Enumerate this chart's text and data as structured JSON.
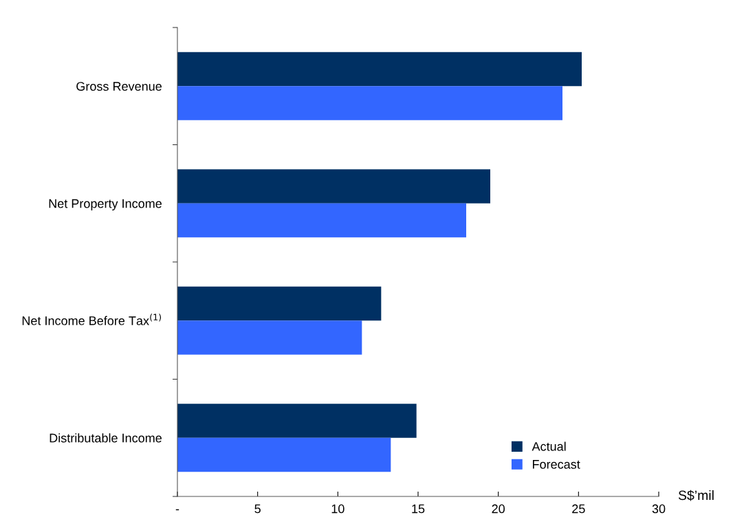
{
  "chart_data": {
    "type": "bar",
    "orientation": "horizontal",
    "xlabel": "S$’mil",
    "categories": [
      "Gross Revenue",
      "Net Property Income",
      "Net Income Before Tax$^{(1)}$",
      "Distributable Income"
    ],
    "series": [
      {
        "name": "Actual",
        "color": "#003063",
        "values": [
          25.2,
          19.5,
          12.7,
          14.9
        ]
      },
      {
        "name": "Forecast",
        "color": "#3366ff",
        "values": [
          24.0,
          18.0,
          11.5,
          13.3
        ]
      }
    ],
    "xlim": [
      0,
      30
    ],
    "xticks": [
      {
        "value": 0,
        "label": "-"
      },
      5,
      10,
      15,
      20,
      25,
      30
    ],
    "grid": false,
    "legend": "bottom right"
  }
}
